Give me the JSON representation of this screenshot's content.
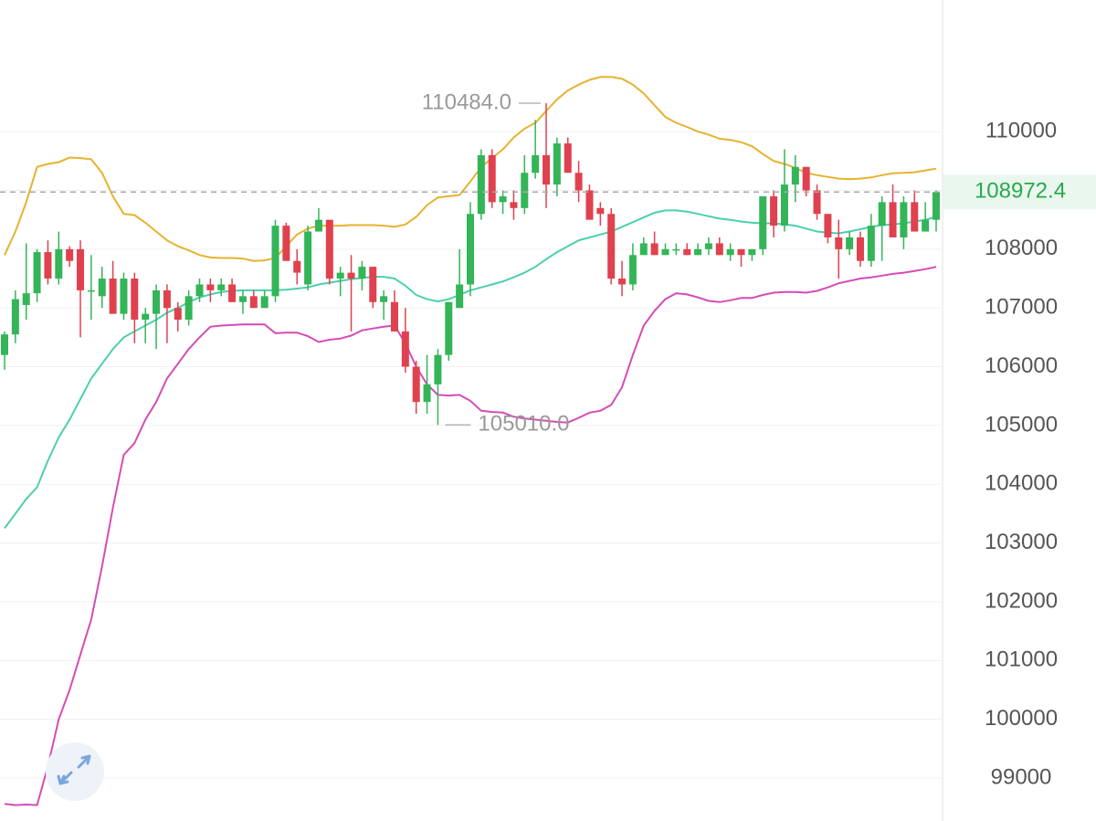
{
  "chart_data": {
    "type": "candlestick",
    "ylim": [
      98270,
      112240
    ],
    "yticks": [
      99000,
      100000,
      101000,
      102000,
      103000,
      104000,
      105000,
      106000,
      107000,
      108000,
      109000,
      110000
    ],
    "grid": true,
    "up_color": "#33b558",
    "down_color": "#e0414e",
    "open": [
      106200,
      106550,
      107050,
      107250,
      107950,
      107500,
      108000,
      108000,
      107300,
      107200,
      107500,
      106900,
      107500,
      106800,
      106900,
      107300,
      107000,
      106800,
      107200,
      107400,
      107300,
      107400,
      107100,
      107200,
      107000,
      107200,
      108400,
      107800,
      107400,
      108300,
      108500,
      107500,
      107600,
      107500,
      107700,
      107100,
      107100,
      106600,
      106000,
      105400,
      105700,
      106200,
      107000,
      107400,
      108600,
      109600,
      108800,
      108800,
      108700,
      109300,
      109600,
      109100,
      109800,
      109300,
      109000,
      108700,
      108600,
      107500,
      107400,
      107900,
      108100,
      107900,
      108000,
      108000,
      107900,
      108000,
      108100,
      107900,
      108000,
      107900,
      108000,
      108900,
      108400,
      109100,
      109400,
      109000,
      108600,
      108200,
      108000,
      108200,
      107800,
      108400,
      108800,
      108200,
      108800,
      108300,
      108500
    ],
    "high": [
      106600,
      107300,
      108100,
      108000,
      108150,
      108300,
      108050,
      108150,
      107900,
      107700,
      107800,
      107600,
      107600,
      107000,
      107400,
      107400,
      107100,
      107300,
      107500,
      107500,
      107500,
      107500,
      107300,
      107300,
      107300,
      108500,
      108450,
      108000,
      108400,
      108700,
      108500,
      107700,
      107900,
      107800,
      107700,
      107300,
      107300,
      107000,
      106100,
      106200,
      106300,
      107100,
      108000,
      108800,
      109700,
      109700,
      109000,
      109000,
      109600,
      110200,
      110484,
      109900,
      109900,
      109500,
      109100,
      108800,
      108700,
      107800,
      108100,
      108200,
      108300,
      108100,
      108100,
      108100,
      108100,
      108200,
      108200,
      108100,
      108000,
      108000,
      108900,
      109000,
      109700,
      109600,
      109400,
      109100,
      108600,
      108500,
      108300,
      108300,
      108600,
      108900,
      109100,
      108900,
      109000,
      108800,
      109000
    ],
    "low": [
      105950,
      106400,
      106800,
      107100,
      107400,
      107400,
      107700,
      106500,
      106800,
      107000,
      106900,
      106800,
      106400,
      106400,
      106300,
      106400,
      106600,
      106700,
      107100,
      107100,
      107200,
      107100,
      106900,
      107000,
      107000,
      107100,
      107800,
      107400,
      107300,
      108300,
      107400,
      107200,
      106600,
      107300,
      107000,
      106800,
      106600,
      105900,
      105200,
      105200,
      105010,
      106100,
      107000,
      107200,
      108500,
      108700,
      108600,
      108500,
      108600,
      109200,
      108700,
      108900,
      109300,
      108800,
      108600,
      108400,
      107400,
      107200,
      107300,
      107900,
      107900,
      107900,
      107900,
      107900,
      107900,
      107900,
      107900,
      107800,
      107700,
      107800,
      107900,
      108200,
      108300,
      108800,
      108900,
      108500,
      108100,
      107500,
      107900,
      107700,
      107700,
      107800,
      108200,
      108000,
      108300,
      108300,
      108300
    ],
    "close": [
      106550,
      107150,
      107250,
      107950,
      107500,
      108000,
      107800,
      107300,
      107300,
      107500,
      106900,
      107500,
      106800,
      106900,
      107300,
      107000,
      106800,
      107200,
      107400,
      107300,
      107400,
      107100,
      107200,
      107000,
      107200,
      108400,
      107800,
      107600,
      108300,
      108500,
      107500,
      107600,
      107500,
      107700,
      107100,
      107200,
      106600,
      106000,
      105400,
      105700,
      106200,
      107100,
      107400,
      108600,
      109600,
      108800,
      108900,
      108700,
      109300,
      109600,
      109100,
      109800,
      109300,
      109000,
      108500,
      108600,
      107500,
      107400,
      107900,
      108100,
      107900,
      108000,
      108000,
      107900,
      108000,
      108100,
      107900,
      108000,
      107900,
      108000,
      108900,
      108400,
      109100,
      109400,
      109000,
      108600,
      108200,
      108000,
      108200,
      107800,
      108400,
      108800,
      108200,
      108800,
      108300,
      108500,
      108972.4
    ],
    "bands": [
      {
        "color": "#e6b330",
        "values": [
          107900,
          108300,
          108800,
          109400,
          109450,
          109480,
          109560,
          109550,
          109530,
          109300,
          108900,
          108600,
          108580,
          108450,
          108300,
          108150,
          108050,
          107980,
          107900,
          107860,
          107850,
          107850,
          107840,
          107800,
          107810,
          107850,
          108050,
          108250,
          108350,
          108400,
          108400,
          108400,
          108410,
          108410,
          108410,
          108400,
          108380,
          108420,
          108550,
          108750,
          108880,
          108900,
          108920,
          109150,
          109400,
          109550,
          109700,
          109900,
          110050,
          110150,
          110350,
          110550,
          110700,
          110800,
          110880,
          110930,
          110930,
          110900,
          110800,
          110650,
          110450,
          110250,
          110150,
          110080,
          110000,
          109950,
          109880,
          109860,
          109820,
          109750,
          109620,
          109500,
          109450,
          109380,
          109300,
          109260,
          109230,
          109200,
          109190,
          109200,
          109220,
          109260,
          109290,
          109300,
          109310,
          109340,
          109370
        ]
      },
      {
        "color": "#4dcfae",
        "values": [
          103250,
          103500,
          103750,
          103950,
          104400,
          104800,
          105100,
          105450,
          105800,
          106050,
          106300,
          106500,
          106600,
          106700,
          106800,
          106920,
          107000,
          107100,
          107180,
          107230,
          107270,
          107290,
          107300,
          107300,
          107300,
          107300,
          107310,
          107330,
          107350,
          107400,
          107430,
          107460,
          107490,
          107510,
          107530,
          107530,
          107500,
          107380,
          107220,
          107150,
          107110,
          107150,
          107220,
          107300,
          107350,
          107400,
          107450,
          107520,
          107600,
          107700,
          107830,
          107950,
          108050,
          108150,
          108200,
          108250,
          108300,
          108380,
          108460,
          108540,
          108620,
          108660,
          108660,
          108640,
          108600,
          108560,
          108520,
          108500,
          108470,
          108450,
          108440,
          108440,
          108420,
          108400,
          108350,
          108300,
          108280,
          108270,
          108300,
          108340,
          108380,
          108410,
          108420,
          108440,
          108470,
          108500,
          108550
        ]
      },
      {
        "color": "#d44cb6",
        "values": [
          98560,
          98540,
          98550,
          98540,
          99200,
          100000,
          100500,
          101100,
          101700,
          102600,
          103600,
          104500,
          104700,
          105100,
          105400,
          105800,
          106050,
          106300,
          106500,
          106680,
          106700,
          106710,
          106720,
          106720,
          106720,
          106570,
          106580,
          106580,
          106520,
          106420,
          106460,
          106480,
          106530,
          106620,
          106650,
          106680,
          106700,
          106400,
          106000,
          105700,
          105520,
          105510,
          105520,
          105420,
          105250,
          105230,
          105220,
          105150,
          105120,
          105100,
          105080,
          105060,
          105050,
          105130,
          105220,
          105250,
          105350,
          105650,
          106200,
          106700,
          106950,
          107150,
          107250,
          107230,
          107180,
          107120,
          107100,
          107130,
          107170,
          107170,
          107220,
          107260,
          107270,
          107270,
          107260,
          107290,
          107350,
          107420,
          107460,
          107500,
          107520,
          107550,
          107580,
          107600,
          107630,
          107660,
          107700
        ]
      }
    ],
    "high_annotation": {
      "value": 110484,
      "label": "110484.0"
    },
    "low_annotation": {
      "value": 105010,
      "label": "105010.0"
    },
    "last_price": 108972.4,
    "last_price_color": "#2aa84f"
  }
}
